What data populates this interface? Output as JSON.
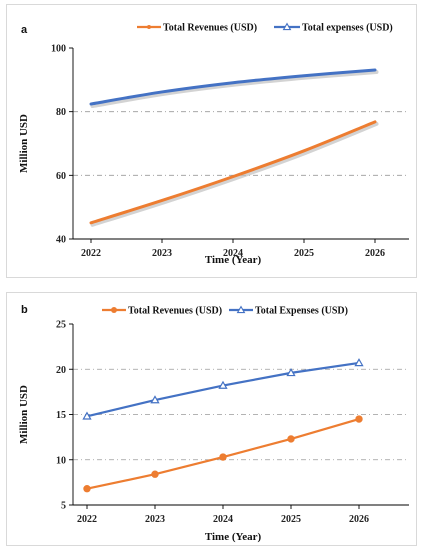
{
  "colors": {
    "revenue": "#ED7D31",
    "expenses": "#4472C4",
    "grid": "#9a9a9a"
  },
  "chart_data": [
    {
      "panel": "a",
      "type": "line",
      "x": [
        2022,
        2023,
        2024,
        2025,
        2026
      ],
      "series": [
        {
          "name": "Total Revenues (USD)",
          "values": [
            45.1,
            52.1,
            59.6,
            67.7,
            76.8
          ],
          "color": "#ED7D31",
          "marker": "none"
        },
        {
          "name": "Total expenses (USD)",
          "values": [
            82.4,
            86.2,
            89.1,
            91.3,
            93.1
          ],
          "color": "#4472C4",
          "marker": "none"
        }
      ],
      "xlabel": "Time (Year)",
      "ylabel": "Million USD",
      "xticks": [
        "2022",
        "2023",
        "2024",
        "2025",
        "2026"
      ],
      "yticks": [
        "40",
        "60",
        "80",
        "100"
      ],
      "ylim": [
        40,
        100
      ],
      "grid": "horizontal dash-dot",
      "legend": "top-center"
    },
    {
      "panel": "b",
      "type": "line",
      "x": [
        2022,
        2023,
        2024,
        2025,
        2026
      ],
      "series": [
        {
          "name": "Total Revenues (USD)",
          "values": [
            6.8,
            8.4,
            10.3,
            12.3,
            14.5
          ],
          "color": "#ED7D31",
          "marker": "circle"
        },
        {
          "name": "Total Expenses (USD)",
          "values": [
            14.8,
            16.6,
            18.2,
            19.6,
            20.7
          ],
          "color": "#4472C4",
          "marker": "triangle"
        }
      ],
      "xlabel": "Time (Year)",
      "ylabel": "Million USD",
      "xticks": [
        "2022",
        "2023",
        "2024",
        "2025",
        "2026"
      ],
      "yticks": [
        "5",
        "10",
        "15",
        "20",
        "25"
      ],
      "ylim": [
        5,
        25
      ],
      "grid": "horizontal dash-dot",
      "legend": "top-center"
    }
  ]
}
